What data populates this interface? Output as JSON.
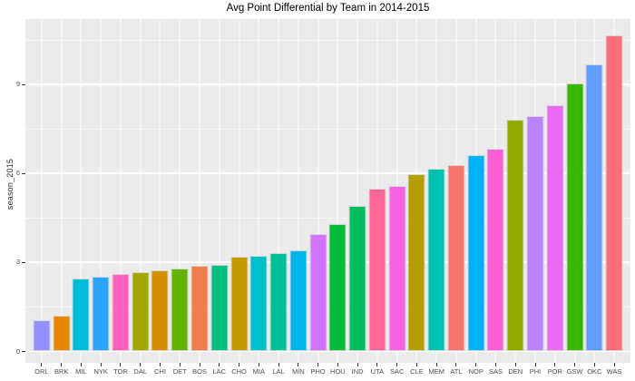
{
  "chart_data": {
    "type": "bar",
    "title": "Avg Point Differential by Team in 2014-2015",
    "xlabel": "",
    "ylabel": "season_2015",
    "categories": [
      "ORL",
      "BRK",
      "MIL",
      "NYK",
      "TOR",
      "DAL",
      "CHI",
      "DET",
      "BOS",
      "LAC",
      "CHO",
      "MIA",
      "LAL",
      "MIN",
      "PHO",
      "HOU",
      "IND",
      "UTA",
      "SAC",
      "CLE",
      "MEM",
      "ATL",
      "NOP",
      "SAS",
      "DEN",
      "PHI",
      "POR",
      "GSW",
      "OKC",
      "WAS"
    ],
    "values": [
      1.04,
      1.19,
      2.45,
      2.51,
      2.61,
      2.67,
      2.72,
      2.78,
      2.87,
      2.92,
      3.19,
      3.21,
      3.29,
      3.4,
      3.95,
      4.29,
      4.9,
      5.47,
      5.58,
      5.98,
      6.15,
      6.27,
      6.6,
      6.82,
      7.79,
      7.91,
      8.29,
      9.03,
      9.67,
      10.65
    ],
    "bar_colors": [
      "#9590FF",
      "#E58700",
      "#00BCD9",
      "#2BA3FF",
      "#FF62BC",
      "#A3A500",
      "#D29000",
      "#64B200",
      "#F07E4C",
      "#00BF7D",
      "#C49A00",
      "#00BFC8",
      "#00C094",
      "#00B5EC",
      "#D075FA",
      "#00BA38",
      "#00BD5F",
      "#FF6796",
      "#F564E3",
      "#B3A000",
      "#00C0B0",
      "#F8766D",
      "#00B0F6",
      "#FC61D4",
      "#91AA00",
      "#B983FF",
      "#E76BF3",
      "#39B600",
      "#619CFF",
      "#FA6E79"
    ],
    "yticks": [
      0,
      3,
      6,
      9
    ],
    "minor_yticks": [
      1.5,
      4.5,
      7.5,
      10.5
    ],
    "ylim": [
      0,
      11.2
    ],
    "grid": "on",
    "legend": "none",
    "style": {
      "panel_bg": "#EBEBEB",
      "grid_color": "#FFFFFF",
      "tick_label_color": "#4D4D4D",
      "tick_mark_color": "#333333",
      "title_color": "#000000",
      "axis_title_color": "#2B2B2B"
    }
  }
}
